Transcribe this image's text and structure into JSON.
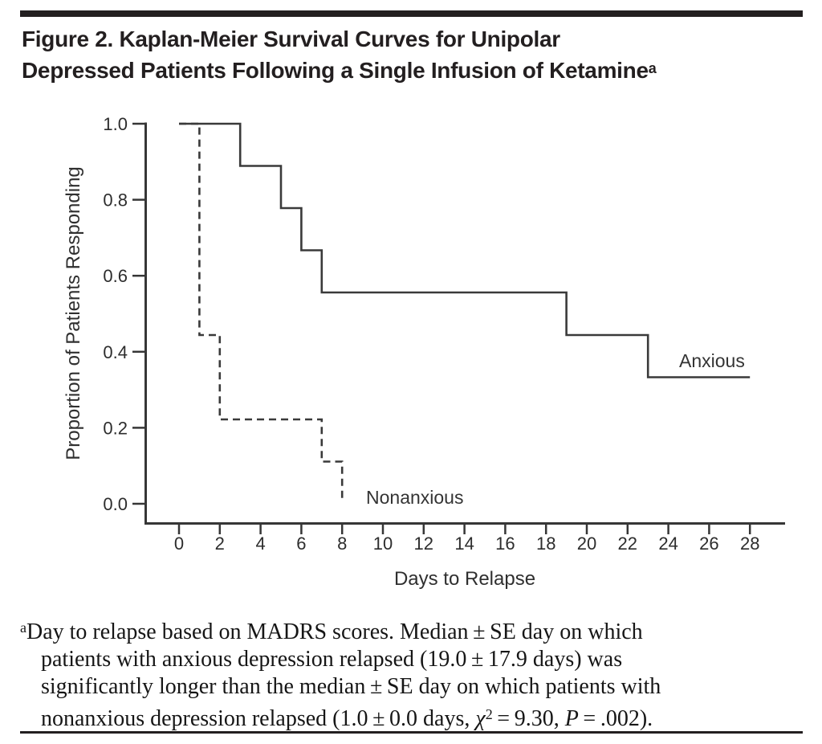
{
  "header": {
    "title_line1": "Figure 2. Kaplan-Meier Survival Curves for Unipolar",
    "title_line2": "Depressed Patients Following a Single Infusion of Ketamine",
    "title_superscript": "a"
  },
  "chart_data": {
    "type": "line",
    "variant": "kaplan-meier-step",
    "title": "Kaplan-Meier Survival Curves for Unipolar Depressed Patients Following a Single Infusion of Ketamine",
    "xlabel": "Days to Relapse",
    "ylabel": "Proportion of Patients Responding",
    "xlim": [
      0,
      28
    ],
    "ylim": [
      0.0,
      1.0
    ],
    "grid": false,
    "legend_position": "inline-labels",
    "xticks": [
      0,
      2,
      4,
      6,
      8,
      10,
      12,
      14,
      16,
      18,
      20,
      22,
      24,
      26,
      28
    ],
    "yticks": [
      0.0,
      0.2,
      0.4,
      0.6,
      0.8,
      1.0
    ],
    "ytick_labels": [
      "0.0",
      "0.2",
      "0.4",
      "0.6",
      "0.8",
      "1.0"
    ],
    "series": [
      {
        "name": "Anxious",
        "line_style": "solid",
        "points": [
          [
            0,
            1.0
          ],
          [
            3,
            1.0
          ],
          [
            3,
            0.889
          ],
          [
            5,
            0.889
          ],
          [
            5,
            0.778
          ],
          [
            6,
            0.778
          ],
          [
            6,
            0.667
          ],
          [
            7,
            0.667
          ],
          [
            7,
            0.556
          ],
          [
            19,
            0.556
          ],
          [
            19,
            0.444
          ],
          [
            23,
            0.444
          ],
          [
            23,
            0.333
          ],
          [
            28,
            0.333
          ]
        ]
      },
      {
        "name": "Nonanxious",
        "line_style": "dashed",
        "points": [
          [
            0,
            1.0
          ],
          [
            1,
            1.0
          ],
          [
            1,
            0.444
          ],
          [
            2,
            0.444
          ],
          [
            2,
            0.222
          ],
          [
            7,
            0.222
          ],
          [
            7,
            0.111
          ],
          [
            8,
            0.111
          ],
          [
            8,
            0.01
          ]
        ]
      }
    ],
    "colors": {
      "curve": "#3a3a3a",
      "axis": "#363636",
      "rule": "#231f20"
    }
  },
  "footnote": {
    "marker": "a",
    "line1": "Day to relapse based on MADRS scores. Median ± SE day on which",
    "line2": "patients with anxious depression relapsed (19.0 ± 17.9 days) was",
    "line3": "significantly longer than the median ± SE day on which patients with",
    "line4_before_chi": "nonanxious depression relapsed (1.0 ± 0.0 days, ",
    "chi": "χ",
    "chi_exponent": "2",
    "line4_mid": " = 9.30, ",
    "p_symbol": "P",
    "line4_end": " = .002)."
  }
}
